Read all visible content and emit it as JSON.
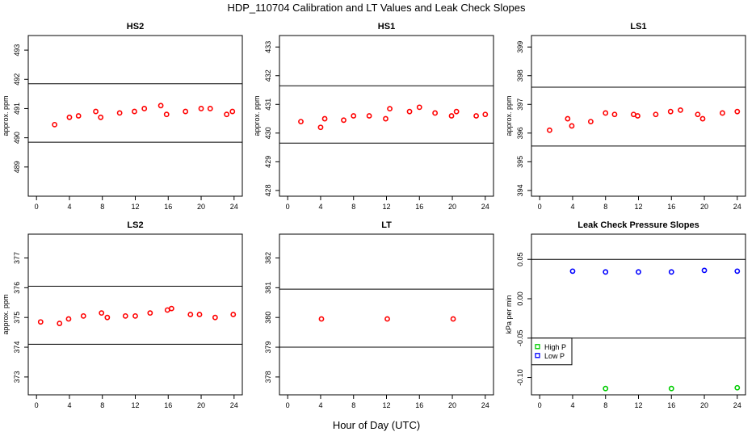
{
  "figure": {
    "title": "HDP_110704  Calibration and LT Values and Leak Check Slopes",
    "xlabel": "Hour of Day (UTC)"
  },
  "chart_data": [
    {
      "type": "scatter",
      "title": "HS2",
      "ylabel": "approx. ppm",
      "xlim": [
        -1,
        25
      ],
      "ylim": [
        488,
        493.5
      ],
      "xticks": [
        0,
        4,
        8,
        12,
        16,
        20,
        24
      ],
      "yticks": [
        489,
        490,
        491,
        492,
        493
      ],
      "hlines": [
        489.85,
        491.85
      ],
      "series": [
        {
          "color": "#ff0000",
          "points": [
            [
              2.2,
              490.45
            ],
            [
              4.0,
              490.7
            ],
            [
              5.1,
              490.75
            ],
            [
              7.2,
              490.9
            ],
            [
              7.8,
              490.7
            ],
            [
              10.1,
              490.85
            ],
            [
              11.9,
              490.9
            ],
            [
              13.1,
              491.0
            ],
            [
              15.1,
              491.1
            ],
            [
              15.8,
              490.8
            ],
            [
              18.1,
              490.9
            ],
            [
              20.0,
              491.0
            ],
            [
              21.1,
              491.0
            ],
            [
              23.1,
              490.8
            ],
            [
              23.8,
              490.9
            ]
          ]
        }
      ]
    },
    {
      "type": "scatter",
      "title": "HS1",
      "ylabel": "approx. ppm",
      "xlim": [
        -1,
        25
      ],
      "ylim": [
        427.8,
        433.4
      ],
      "xticks": [
        0,
        4,
        8,
        12,
        16,
        20,
        24
      ],
      "yticks": [
        428,
        429,
        430,
        431,
        432,
        433
      ],
      "hlines": [
        429.65,
        431.65
      ],
      "series": [
        {
          "color": "#ff0000",
          "points": [
            [
              1.6,
              430.4
            ],
            [
              4.0,
              430.2
            ],
            [
              4.5,
              430.5
            ],
            [
              6.8,
              430.45
            ],
            [
              8.0,
              430.6
            ],
            [
              9.9,
              430.6
            ],
            [
              11.9,
              430.5
            ],
            [
              12.4,
              430.85
            ],
            [
              14.8,
              430.75
            ],
            [
              16.0,
              430.9
            ],
            [
              17.9,
              430.7
            ],
            [
              19.9,
              430.6
            ],
            [
              20.5,
              430.75
            ],
            [
              22.9,
              430.6
            ],
            [
              24.0,
              430.65
            ]
          ]
        }
      ]
    },
    {
      "type": "scatter",
      "title": "LS1",
      "ylabel": "approx. ppm",
      "xlim": [
        -1,
        25
      ],
      "ylim": [
        393.8,
        399.4
      ],
      "xticks": [
        0,
        4,
        8,
        12,
        16,
        20,
        24
      ],
      "yticks": [
        394,
        395,
        396,
        397,
        398,
        399
      ],
      "hlines": [
        395.55,
        397.6
      ],
      "series": [
        {
          "color": "#ff0000",
          "points": [
            [
              1.2,
              396.1
            ],
            [
              3.4,
              396.5
            ],
            [
              3.9,
              396.25
            ],
            [
              6.2,
              396.4
            ],
            [
              8.0,
              396.7
            ],
            [
              9.1,
              396.65
            ],
            [
              11.4,
              396.65
            ],
            [
              11.9,
              396.6
            ],
            [
              14.1,
              396.65
            ],
            [
              15.9,
              396.75
            ],
            [
              17.1,
              396.8
            ],
            [
              19.2,
              396.65
            ],
            [
              19.8,
              396.5
            ],
            [
              22.2,
              396.7
            ],
            [
              24.0,
              396.75
            ]
          ]
        }
      ]
    },
    {
      "type": "scatter",
      "title": "LS2",
      "ylabel": "approx. ppm",
      "xlim": [
        -1,
        25
      ],
      "ylim": [
        372.4,
        377.8
      ],
      "xticks": [
        0,
        4,
        8,
        12,
        16,
        20,
        24
      ],
      "yticks": [
        373,
        374,
        375,
        376,
        377
      ],
      "hlines": [
        374.1,
        376.05
      ],
      "series": [
        {
          "color": "#ff0000",
          "points": [
            [
              0.5,
              374.85
            ],
            [
              2.8,
              374.8
            ],
            [
              3.9,
              374.95
            ],
            [
              5.7,
              375.05
            ],
            [
              7.9,
              375.15
            ],
            [
              8.6,
              375.0
            ],
            [
              10.8,
              375.05
            ],
            [
              12.0,
              375.05
            ],
            [
              13.8,
              375.15
            ],
            [
              15.9,
              375.25
            ],
            [
              16.4,
              375.3
            ],
            [
              18.7,
              375.1
            ],
            [
              19.8,
              375.1
            ],
            [
              21.7,
              375.0
            ],
            [
              23.9,
              375.1
            ]
          ]
        }
      ]
    },
    {
      "type": "scatter",
      "title": "LT",
      "ylabel": "",
      "xlim": [
        -1,
        25
      ],
      "ylim": [
        377.4,
        382.8
      ],
      "xticks": [
        0,
        4,
        8,
        12,
        16,
        20,
        24
      ],
      "yticks": [
        378,
        379,
        380,
        381,
        382
      ],
      "hlines": [
        379.0,
        380.95
      ],
      "series": [
        {
          "color": "#ff0000",
          "points": [
            [
              4.1,
              379.95
            ],
            [
              12.1,
              379.95
            ],
            [
              20.1,
              379.95
            ]
          ]
        }
      ]
    },
    {
      "type": "scatter",
      "title": "Leak Check Pressure Slopes",
      "ylabel": "kPa per min",
      "xlim": [
        -1,
        25
      ],
      "ylim": [
        -0.122,
        0.082
      ],
      "xticks": [
        0,
        4,
        8,
        12,
        16,
        20,
        24
      ],
      "yticks": [
        -0.1,
        -0.05,
        0.0,
        0.05
      ],
      "ytick_labels": [
        "-0.10",
        "-0.05",
        "0.00",
        "0.05"
      ],
      "hlines": [
        0.05,
        -0.05
      ],
      "legend": {
        "position": "bottom-left",
        "entries": [
          "High P",
          "Low P"
        ]
      },
      "series": [
        {
          "name": "High P",
          "color": "#00cc00",
          "points": [
            [
              8.0,
              -0.114
            ],
            [
              16.0,
              -0.114
            ],
            [
              24.0,
              -0.113
            ]
          ]
        },
        {
          "name": "Low P",
          "color": "#0000ff",
          "points": [
            [
              4.0,
              0.035
            ],
            [
              8.0,
              0.034
            ],
            [
              12.0,
              0.034
            ],
            [
              16.0,
              0.034
            ],
            [
              20.0,
              0.036
            ],
            [
              24.0,
              0.035
            ]
          ]
        }
      ]
    }
  ]
}
